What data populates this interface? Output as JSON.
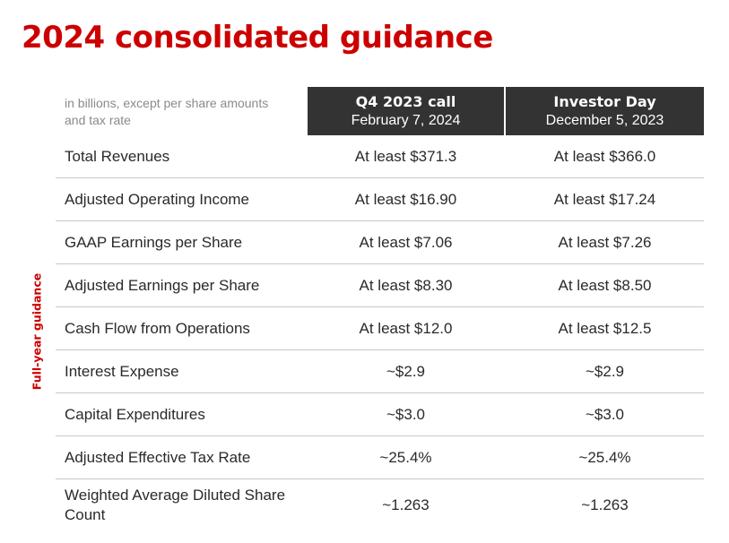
{
  "title": "2024 consolidated guidance",
  "side_label": "Full-year guidance",
  "note": "in billions, except per share amounts and tax rate",
  "columns": [
    {
      "title": "Q4 2023 call",
      "date": "February 7, 2024"
    },
    {
      "title": "Investor Day",
      "date": "December 5, 2023"
    }
  ],
  "rows": [
    {
      "label": "Total Revenues",
      "q4_call": "At least $371.3",
      "investor_day": "At least $366.0"
    },
    {
      "label": "Adjusted Operating Income",
      "q4_call": "At least $16.90",
      "investor_day": "At least $17.24"
    },
    {
      "label": "GAAP Earnings per Share",
      "q4_call": "At least $7.06",
      "investor_day": "At least $7.26"
    },
    {
      "label": "Adjusted Earnings per Share",
      "q4_call": "At least $8.30",
      "investor_day": "At least $8.50"
    },
    {
      "label": "Cash Flow from Operations",
      "q4_call": "At least $12.0",
      "investor_day": "At least $12.5"
    },
    {
      "label": "Interest Expense",
      "q4_call": "~$2.9",
      "investor_day": "~$2.9"
    },
    {
      "label": "Capital Expenditures",
      "q4_call": "~$3.0",
      "investor_day": "~$3.0"
    },
    {
      "label": "Adjusted Effective Tax Rate",
      "q4_call": "~25.4%",
      "investor_day": "~25.4%"
    },
    {
      "label": "Weighted Average Diluted Share Count",
      "q4_call": "~1.263",
      "investor_day": "~1.263"
    }
  ],
  "colors": {
    "accent": "#cc0000",
    "header_bg": "#333333",
    "header_text": "#ffffff",
    "note_text": "#8a8a8a",
    "divider": "#c8c8c8"
  }
}
